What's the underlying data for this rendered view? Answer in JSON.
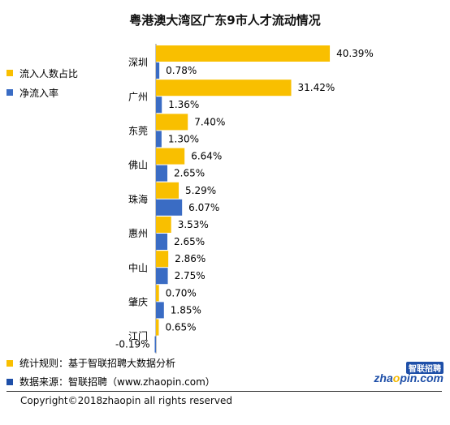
{
  "title": "粤港澳大湾区广东9市人才流动情况",
  "legend": [
    {
      "label": "流入人数占比",
      "color": "#f9bf00"
    },
    {
      "label": "净流入率",
      "color": "#3a6cc4"
    }
  ],
  "notes": [
    {
      "text": "统计规则：基于智联招聘大数据分析",
      "color": "#f9bf00"
    },
    {
      "text": "数据来源：智联招聘（www.zhaopin.com）",
      "color": "#1e4fa8"
    }
  ],
  "logo": {
    "top": "智联招聘",
    "word_a": "zha",
    "word_o": "o",
    "word_b": "pin.com"
  },
  "copyright": "Copyright©2018zhaopin all rights reserved",
  "chart_data": {
    "type": "bar",
    "orientation": "horizontal",
    "categories": [
      "深圳",
      "广州",
      "东莞",
      "佛山",
      "珠海",
      "惠州",
      "中山",
      "肇庆",
      "江门"
    ],
    "series": [
      {
        "name": "流入人数占比",
        "color": "#f9bf00",
        "values": [
          40.39,
          31.42,
          7.4,
          6.64,
          5.29,
          3.53,
          2.86,
          0.7,
          0.65
        ],
        "labels": [
          "40.39%",
          "31.42%",
          "7.40%",
          "6.64%",
          "5.29%",
          "3.53%",
          "2.86%",
          "0.70%",
          "0.65%"
        ]
      },
      {
        "name": "净流入率",
        "color": "#3a6cc4",
        "values": [
          0.78,
          1.36,
          1.3,
          2.65,
          6.07,
          2.65,
          2.75,
          1.85,
          -0.19
        ],
        "labels": [
          "0.78%",
          "1.36%",
          "1.30%",
          "2.65%",
          "6.07%",
          "2.65%",
          "2.75%",
          "1.85%",
          "-0.19%"
        ]
      }
    ],
    "unit": "%",
    "legend_position": "left",
    "grid": false
  }
}
